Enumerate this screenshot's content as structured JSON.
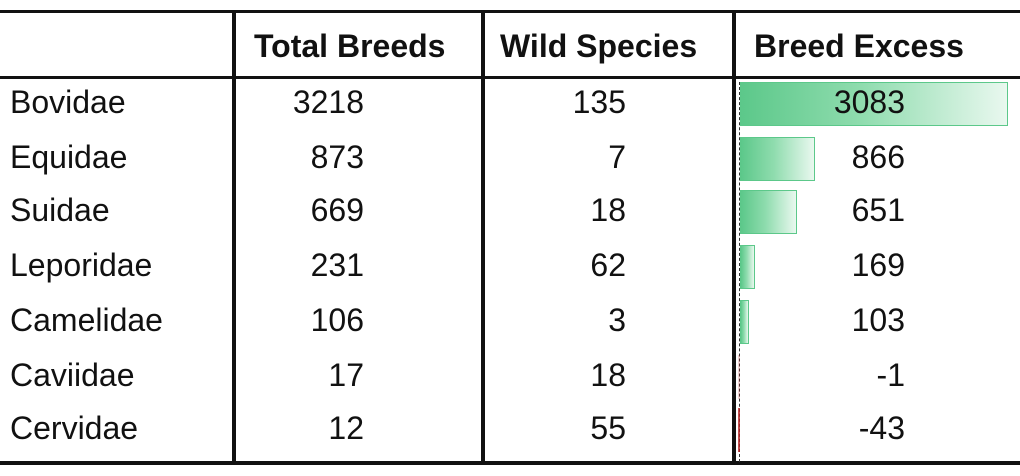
{
  "chart_data": {
    "type": "table",
    "columns": [
      "",
      "Total Breeds",
      "Wild Species",
      "Breed Excess"
    ],
    "rows": [
      {
        "family": "Bovidae",
        "total_breeds": "3218",
        "wild_species": "135",
        "breed_excess": "3083",
        "excess_value": 3083
      },
      {
        "family": "Equidae",
        "total_breeds": "873",
        "wild_species": "7",
        "breed_excess": "866",
        "excess_value": 866
      },
      {
        "family": "Suidae",
        "total_breeds": "669",
        "wild_species": "18",
        "breed_excess": "651",
        "excess_value": 651
      },
      {
        "family": "Leporidae",
        "total_breeds": "231",
        "wild_species": "62",
        "breed_excess": "169",
        "excess_value": 169
      },
      {
        "family": "Camelidae",
        "total_breeds": "106",
        "wild_species": "3",
        "breed_excess": "103",
        "excess_value": 103
      },
      {
        "family": "Caviidae",
        "total_breeds": "17",
        "wild_species": "18",
        "breed_excess": "-1",
        "excess_value": -1
      },
      {
        "family": "Cervidae",
        "total_breeds": "12",
        "wild_species": "55",
        "breed_excess": "-43",
        "excess_value": -43
      }
    ],
    "data_bar_max": 3083,
    "data_bar_color": "#5cc88a",
    "negative_bar_color": "#b22222"
  }
}
